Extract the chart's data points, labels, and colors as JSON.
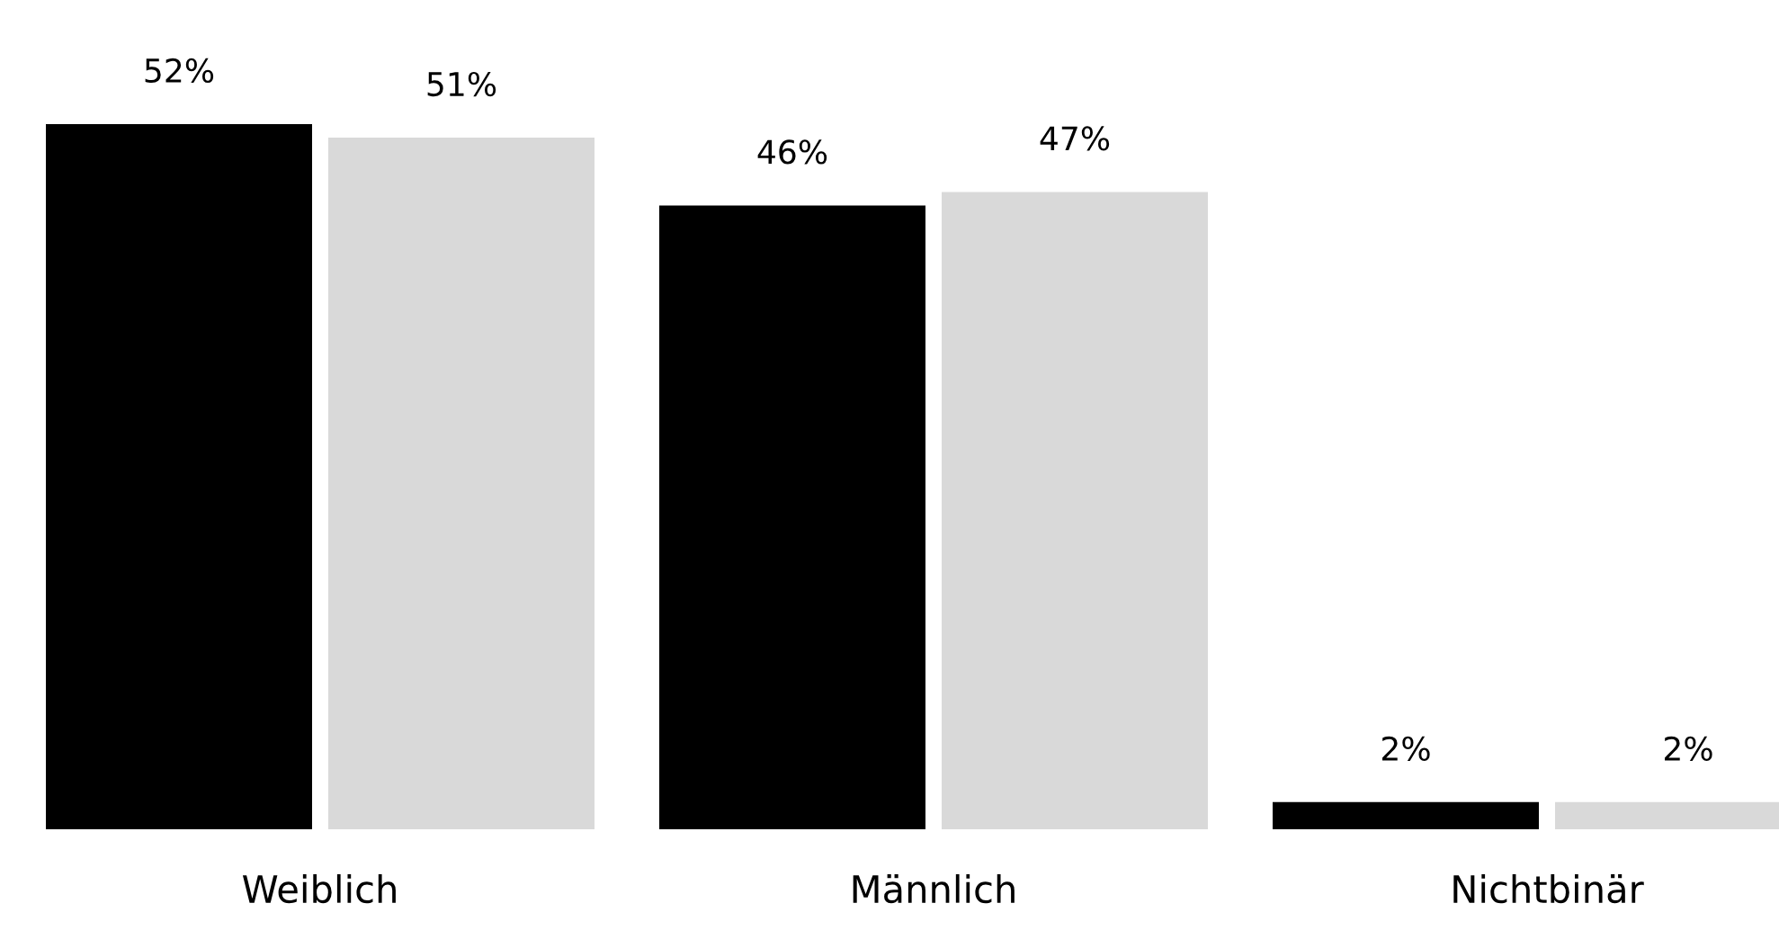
{
  "chart_data": {
    "type": "bar",
    "categories": [
      "Weiblich",
      "Männlich",
      "Nichtbinär"
    ],
    "series": [
      {
        "color": "#000000",
        "values": [
          52,
          46,
          2
        ],
        "value_labels": [
          "52%",
          "46%",
          "2%"
        ]
      },
      {
        "color": "#d9d9d9",
        "values": [
          51,
          47,
          2
        ],
        "value_labels": [
          "51%",
          "47%",
          "2%"
        ]
      }
    ],
    "grid": false
  }
}
